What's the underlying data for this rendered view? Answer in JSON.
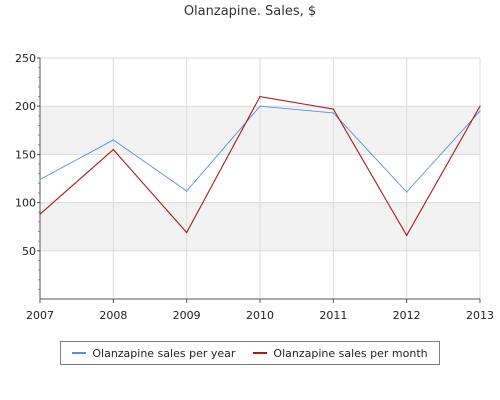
{
  "chart_data": {
    "type": "line",
    "title": "Olanzapine. Sales, $",
    "xlabel": "",
    "ylabel": "",
    "x": [
      "2007",
      "2008",
      "2009",
      "2010",
      "2011",
      "2012",
      "2013"
    ],
    "yticks": [
      "50",
      "100",
      "150",
      "200",
      "250"
    ],
    "ylim": [
      0,
      250
    ],
    "grid": true,
    "legend_position": "bottom",
    "series": [
      {
        "name": "Olanzapine sales per year",
        "color": "#5b8fd9",
        "values": [
          124,
          165,
          112,
          200,
          193,
          111,
          195
        ]
      },
      {
        "name": "Olanzapine sales per month",
        "color": "#a31d1d",
        "values": [
          88,
          155,
          69,
          210,
          197,
          66,
          200
        ]
      }
    ],
    "colors": {
      "band": "#f2f2f2",
      "grid": "#dcdcdc",
      "axis": "#555555"
    }
  }
}
